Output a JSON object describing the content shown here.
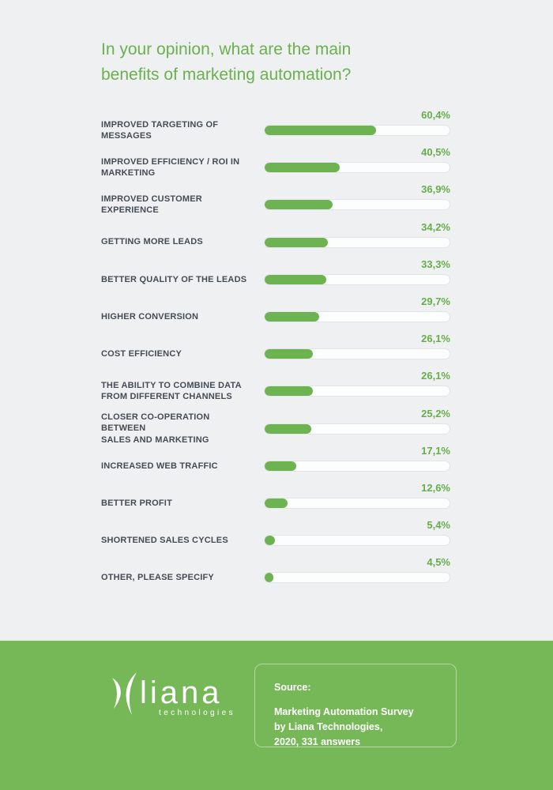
{
  "page": {
    "background": "#eef0f1",
    "title_lines": [
      "In your opinion, what are the main",
      "benefits of marketing automation?"
    ]
  },
  "chart_data": {
    "type": "bar",
    "orientation": "horizontal",
    "title": "In your opinion, what are the main benefits of marketing automation?",
    "xlabel": "",
    "ylabel": "",
    "unit": "%",
    "xlim": [
      0,
      100
    ],
    "grid": false,
    "legend": "none",
    "categories": [
      "IMPROVED TARGETING OF MESSAGES",
      "IMPROVED EFFICIENCY / ROI IN MARKETING",
      "IMPROVED CUSTOMER EXPERIENCE",
      "GETTING MORE LEADS",
      "BETTER QUALITY OF THE LEADS",
      "HIGHER CONVERSION",
      "COST EFFICIENCY",
      "THE ABILITY TO COMBINE DATA FROM DIFFERENT CHANNELS",
      "CLOSER CO-OPERATION BETWEEN SALES AND MARKETING",
      "INCREASED WEB TRAFFIC",
      "BETTER PROFIT",
      "SHORTENED SALES CYCLES",
      "OTHER, PLEASE SPECIFY"
    ],
    "category_lines": [
      [
        "IMPROVED TARGETING OF",
        "MESSAGES"
      ],
      [
        "IMPROVED EFFICIENCY / ROI IN",
        "MARKETING"
      ],
      [
        "IMPROVED CUSTOMER",
        "EXPERIENCE"
      ],
      [
        "GETTING MORE LEADS"
      ],
      [
        "BETTER QUALITY OF THE LEADS"
      ],
      [
        "HIGHER CONVERSION"
      ],
      [
        "COST EFFICIENCY"
      ],
      [
        "THE ABILITY TO COMBINE DATA",
        "FROM DIFFERENT CHANNELS"
      ],
      [
        "CLOSER CO-OPERATION BETWEEN",
        "SALES AND MARKETING"
      ],
      [
        "INCREASED WEB TRAFFIC"
      ],
      [
        "BETTER PROFIT"
      ],
      [
        "SHORTENED SALES CYCLES"
      ],
      [
        "OTHER, PLEASE SPECIFY"
      ]
    ],
    "values": [
      60.4,
      40.5,
      36.9,
      34.2,
      33.3,
      29.7,
      26.1,
      26.1,
      25.2,
      17.1,
      12.6,
      5.4,
      4.5
    ],
    "value_labels": [
      "60,4%",
      "40,5%",
      "36,9%",
      "34,2%",
      "33,3%",
      "29,7%",
      "26,1%",
      "26,1%",
      "25,2%",
      "17,1%",
      "12,6%",
      "5,4%",
      "4,5%"
    ]
  },
  "colors": {
    "title_green": "#6cb04f",
    "bar_fill_green": "#6db351",
    "value_label_green": "#67ae4b",
    "category_label_gray": "#454c55",
    "track_background": "#fcfdfd",
    "track_border": "#e2e4e5",
    "footer_green": "#76b857",
    "footer_text_white": "#ffffff"
  },
  "footer": {
    "logo": {
      "brand": "liana",
      "subbrand": "technologies"
    },
    "source": {
      "heading": "Source:",
      "lines": [
        "Marketing Automation Survey",
        "by Liana Technologies,",
        "2020, 331 answers"
      ]
    }
  }
}
